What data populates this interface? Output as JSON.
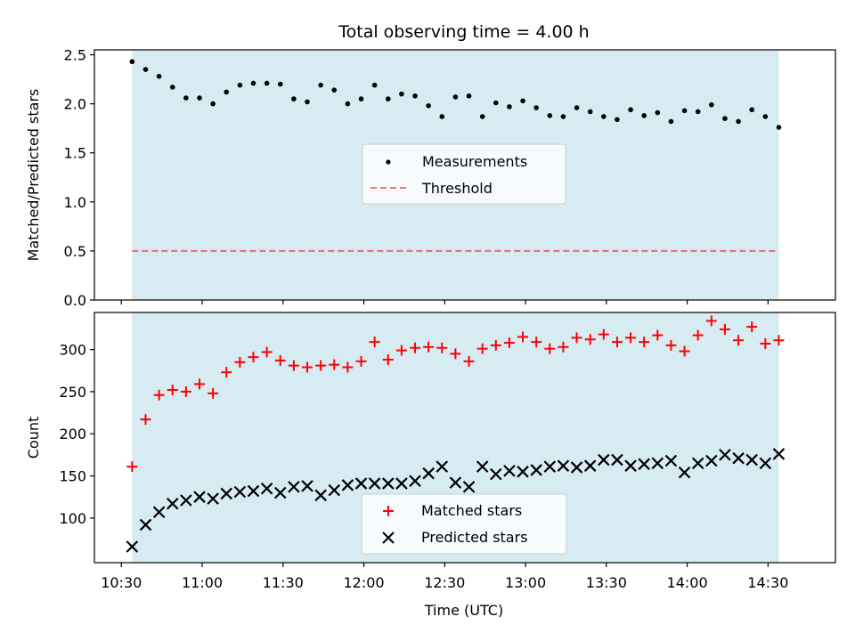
{
  "title": "Total observing time = 4.00 h",
  "colors": {
    "shade": "#add8e6",
    "measurement": "#000000",
    "threshold": "#ff0000",
    "matched": "#ff0000",
    "predicted": "#000000"
  },
  "chart_data": [
    {
      "type": "scatter",
      "ylabel": "Matched/Predicted stars",
      "ylim": [
        0,
        2.55
      ],
      "yticks": [
        0.0,
        0.5,
        1.0,
        1.5,
        2.0,
        2.5
      ],
      "ytick_labels": [
        "0.0",
        "0.5",
        "1.0",
        "1.5",
        "2.0",
        "2.5"
      ],
      "x_axis": "Time (UTC)",
      "xlim": [
        "10:20",
        "14:55"
      ],
      "shaded_span": [
        "10:34",
        "14:34"
      ],
      "legend": {
        "placement": "center",
        "entries": [
          "Measurements",
          "Threshold"
        ]
      },
      "threshold": {
        "name": "Threshold",
        "value": 0.5,
        "style": "dashed"
      },
      "series": [
        {
          "name": "Measurements",
          "marker": "dot",
          "x": [
            "10:34",
            "10:39",
            "10:44",
            "10:49",
            "10:54",
            "10:59",
            "11:04",
            "11:09",
            "11:14",
            "11:19",
            "11:24",
            "11:29",
            "11:34",
            "11:39",
            "11:44",
            "11:49",
            "11:54",
            "11:59",
            "12:04",
            "12:09",
            "12:14",
            "12:19",
            "12:24",
            "12:29",
            "12:34",
            "12:39",
            "12:44",
            "12:49",
            "12:54",
            "12:59",
            "13:04",
            "13:09",
            "13:14",
            "13:19",
            "13:24",
            "13:29",
            "13:34",
            "13:39",
            "13:44",
            "13:49",
            "13:54",
            "13:59",
            "14:04",
            "14:09",
            "14:14",
            "14:19",
            "14:24",
            "14:29",
            "14:34"
          ],
          "values": [
            2.43,
            2.35,
            2.28,
            2.17,
            2.06,
            2.06,
            2.0,
            2.12,
            2.19,
            2.21,
            2.21,
            2.2,
            2.05,
            2.02,
            2.19,
            2.14,
            2.0,
            2.05,
            2.19,
            2.05,
            2.1,
            2.08,
            1.98,
            1.87,
            2.07,
            2.08,
            1.87,
            2.01,
            1.97,
            2.03,
            1.96,
            1.88,
            1.87,
            1.96,
            1.92,
            1.87,
            1.84,
            1.94,
            1.88,
            1.91,
            1.82,
            1.93,
            1.92,
            1.99,
            1.85,
            1.82,
            1.94,
            1.87,
            1.76
          ]
        }
      ]
    },
    {
      "type": "scatter",
      "xlabel": "Time (UTC)",
      "ylabel": "Count",
      "ylim": [
        47,
        344
      ],
      "yticks": [
        100,
        150,
        200,
        250,
        300
      ],
      "ytick_labels": [
        "100",
        "150",
        "200",
        "250",
        "300"
      ],
      "xlim": [
        "10:20",
        "14:55"
      ],
      "xticks": [
        "10:30",
        "11:00",
        "11:30",
        "12:00",
        "12:30",
        "13:00",
        "13:30",
        "14:00",
        "14:30"
      ],
      "xtick_labels": [
        "10:30",
        "11:00",
        "11:30",
        "12:00",
        "12:30",
        "13:00",
        "13:30",
        "14:00",
        "14:30"
      ],
      "shaded_span": [
        "10:34",
        "14:34"
      ],
      "legend": {
        "placement": "lower center",
        "entries": [
          "Matched stars",
          "Predicted stars"
        ]
      },
      "series": [
        {
          "name": "Matched stars",
          "marker": "plus",
          "x": [
            "10:34",
            "10:39",
            "10:44",
            "10:49",
            "10:54",
            "10:59",
            "11:04",
            "11:09",
            "11:14",
            "11:19",
            "11:24",
            "11:29",
            "11:34",
            "11:39",
            "11:44",
            "11:49",
            "11:54",
            "11:59",
            "12:04",
            "12:09",
            "12:14",
            "12:19",
            "12:24",
            "12:29",
            "12:34",
            "12:39",
            "12:44",
            "12:49",
            "12:54",
            "12:59",
            "13:04",
            "13:09",
            "13:14",
            "13:19",
            "13:24",
            "13:29",
            "13:34",
            "13:39",
            "13:44",
            "13:49",
            "13:54",
            "13:59",
            "14:04",
            "14:09",
            "14:14",
            "14:19",
            "14:24",
            "14:29",
            "14:34"
          ],
          "values": [
            161,
            217,
            246,
            252,
            250,
            259,
            248,
            273,
            285,
            291,
            297,
            287,
            281,
            279,
            281,
            282,
            279,
            286,
            309,
            288,
            299,
            302,
            303,
            302,
            295,
            286,
            301,
            305,
            308,
            315,
            309,
            301,
            303,
            314,
            312,
            318,
            309,
            314,
            309,
            317,
            305,
            298,
            317,
            334,
            324,
            311,
            327,
            307,
            311
          ]
        },
        {
          "name": "Predicted stars",
          "marker": "x",
          "x": [
            "10:34",
            "10:39",
            "10:44",
            "10:49",
            "10:54",
            "10:59",
            "11:04",
            "11:09",
            "11:14",
            "11:19",
            "11:24",
            "11:29",
            "11:34",
            "11:39",
            "11:44",
            "11:49",
            "11:54",
            "11:59",
            "12:04",
            "12:09",
            "12:14",
            "12:19",
            "12:24",
            "12:29",
            "12:34",
            "12:39",
            "12:44",
            "12:49",
            "12:54",
            "12:59",
            "13:04",
            "13:09",
            "13:14",
            "13:19",
            "13:24",
            "13:29",
            "13:34",
            "13:39",
            "13:44",
            "13:49",
            "13:54",
            "13:59",
            "14:04",
            "14:09",
            "14:14",
            "14:19",
            "14:24",
            "14:29",
            "14:34"
          ],
          "values": [
            66,
            92,
            107,
            117,
            121,
            125,
            123,
            129,
            131,
            132,
            135,
            130,
            137,
            138,
            127,
            133,
            139,
            141,
            141,
            141,
            141,
            144,
            153,
            161,
            142,
            137,
            161,
            152,
            156,
            155,
            157,
            161,
            162,
            160,
            162,
            169,
            169,
            162,
            164,
            165,
            168,
            154,
            165,
            168,
            175,
            171,
            169,
            165,
            176
          ]
        }
      ]
    }
  ]
}
